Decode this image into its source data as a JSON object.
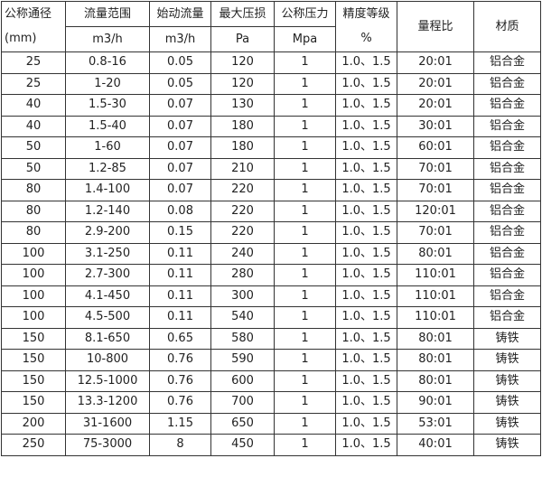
{
  "header": {
    "diameter": "公称通径",
    "diameter_unit": "(mm)",
    "flow_range": "流量范围",
    "flow_range_unit": "m3/h",
    "start_flow": "始动流量",
    "start_flow_unit": "m3/h",
    "max_loss": "最大压损",
    "max_loss_unit": "Pa",
    "pressure": "公称压力",
    "pressure_unit": "Mpa",
    "accuracy": "精度等级",
    "accuracy_unit": "%",
    "turndown": "量程比",
    "material": "材质"
  },
  "rows": [
    [
      "25",
      "0.8-16",
      "0.05",
      "120",
      "1",
      "1.0、1.5",
      "20:01",
      "铝合金"
    ],
    [
      "25",
      "1-20",
      "0.05",
      "120",
      "1",
      "1.0、1.5",
      "20:01",
      "铝合金"
    ],
    [
      "40",
      "1.5-30",
      "0.07",
      "130",
      "1",
      "1.0、1.5",
      "20:01",
      "铝合金"
    ],
    [
      "40",
      "1.5-40",
      "0.07",
      "180",
      "1",
      "1.0、1.5",
      "30:01",
      "铝合金"
    ],
    [
      "50",
      "1-60",
      "0.07",
      "180",
      "1",
      "1.0、1.5",
      "60:01",
      "铝合金"
    ],
    [
      "50",
      "1.2-85",
      "0.07",
      "210",
      "1",
      "1.0、1.5",
      "70:01",
      "铝合金"
    ],
    [
      "80",
      "1.4-100",
      "0.07",
      "220",
      "1",
      "1.0、1.5",
      "70:01",
      "铝合金"
    ],
    [
      "80",
      "1.2-140",
      "0.08",
      "220",
      "1",
      "1.0、1.5",
      "120:01",
      "铝合金"
    ],
    [
      "80",
      "2.9-200",
      "0.15",
      "220",
      "1",
      "1.0、1.5",
      "70:01",
      "铝合金"
    ],
    [
      "100",
      "3.1-250",
      "0.11",
      "240",
      "1",
      "1.0、1.5",
      "80:01",
      "铝合金"
    ],
    [
      "100",
      "2.7-300",
      "0.11",
      "280",
      "1",
      "1.0、1.5",
      "110:01",
      "铝合金"
    ],
    [
      "100",
      "4.1-450",
      "0.11",
      "300",
      "1",
      "1.0、1.5",
      "110:01",
      "铝合金"
    ],
    [
      "100",
      "4.5-500",
      "0.11",
      "540",
      "1",
      "1.0、1.5",
      "110:01",
      "铝合金"
    ],
    [
      "150",
      "8.1-650",
      "0.65",
      "580",
      "1",
      "1.0、1.5",
      "80:01",
      "铸铁"
    ],
    [
      "150",
      "10-800",
      "0.76",
      "590",
      "1",
      "1.0、1.5",
      "80:01",
      "铸铁"
    ],
    [
      "150",
      "12.5-1000",
      "0.76",
      "600",
      "1",
      "1.0、1.5",
      "80:01",
      "铸铁"
    ],
    [
      "150",
      "13.3-1200",
      "0.76",
      "700",
      "1",
      "1.0、1.5",
      "90:01",
      "铸铁"
    ],
    [
      "200",
      "31-1600",
      "1.15",
      "650",
      "1",
      "1.0、1.5",
      "53:01",
      "铸铁"
    ],
    [
      "250",
      "75-3000",
      "8",
      "450",
      "1",
      "1.0、1.5",
      "40:01",
      "铸铁"
    ]
  ]
}
